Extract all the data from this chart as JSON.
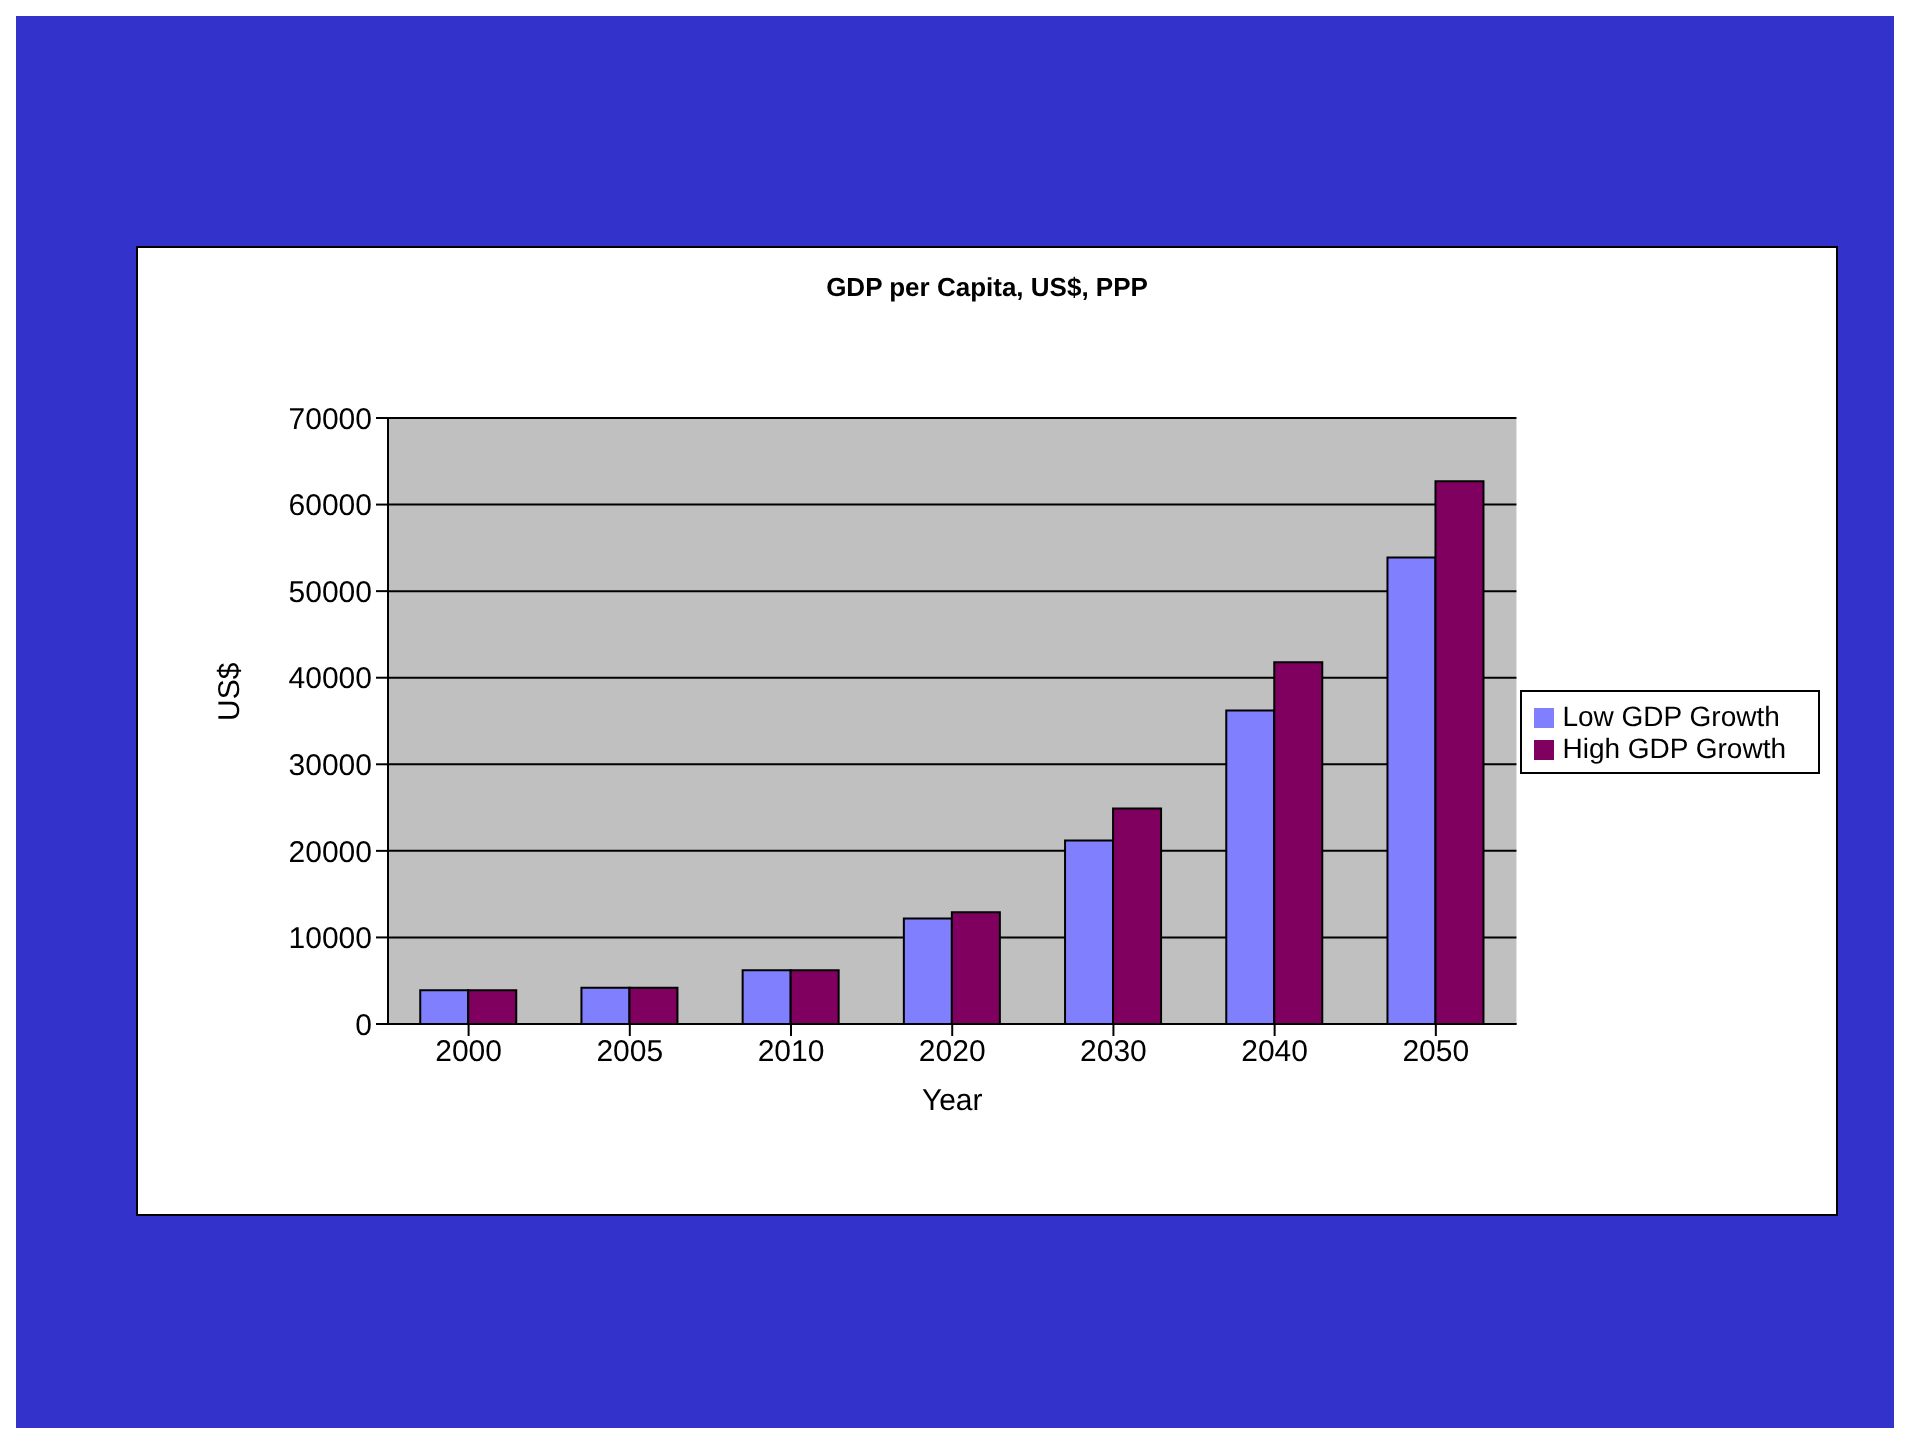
{
  "chart_data": {
    "type": "bar",
    "title": "GDP per Capita, US$, PPP",
    "xlabel": "Year",
    "ylabel": "US$",
    "categories": [
      "2000",
      "2005",
      "2010",
      "2020",
      "2030",
      "2040",
      "2050"
    ],
    "series": [
      {
        "name": "Low GDP Growth",
        "color": "#8080ff",
        "values": [
          3900,
          4200,
          6200,
          12200,
          21200,
          36200,
          53900
        ]
      },
      {
        "name": "High GDP Growth",
        "color": "#800060",
        "values": [
          3900,
          4200,
          6200,
          12900,
          24900,
          41800,
          62700
        ]
      }
    ],
    "ylim": [
      0,
      70000
    ],
    "yticks": [
      0,
      10000,
      20000,
      30000,
      40000,
      50000,
      60000,
      70000
    ],
    "grid": "y",
    "legend": "right"
  }
}
